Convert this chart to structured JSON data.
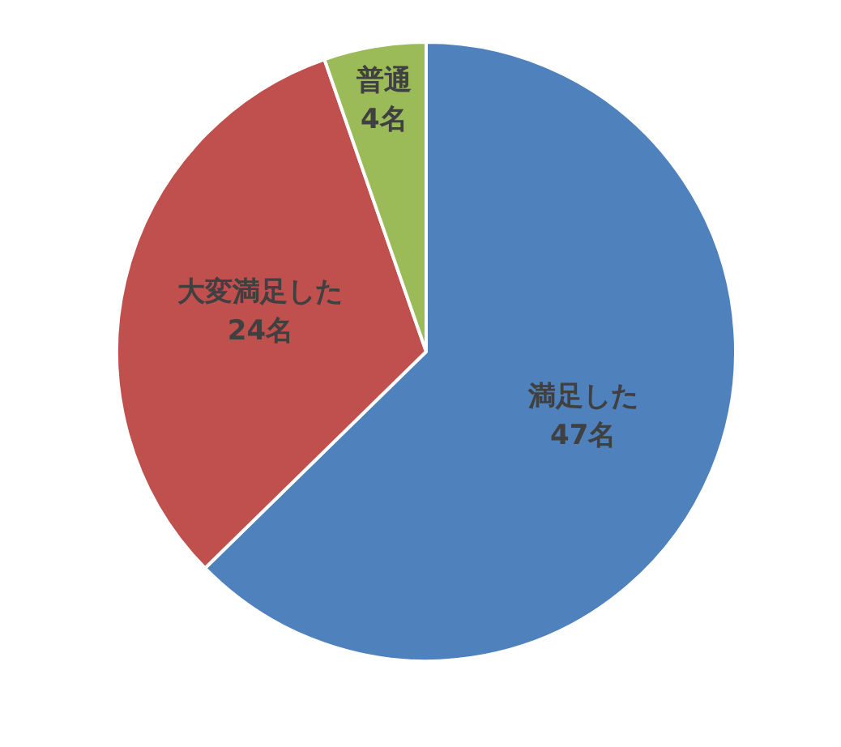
{
  "chart_data": {
    "type": "pie",
    "categories": [
      "満足した",
      "大変満足した",
      "普通"
    ],
    "values": [
      47,
      24,
      4
    ],
    "value_labels": [
      "47名",
      "24名",
      "4名"
    ],
    "colors": [
      "#4f81bd",
      "#c0504d",
      "#9bbb59"
    ],
    "legend": false
  }
}
